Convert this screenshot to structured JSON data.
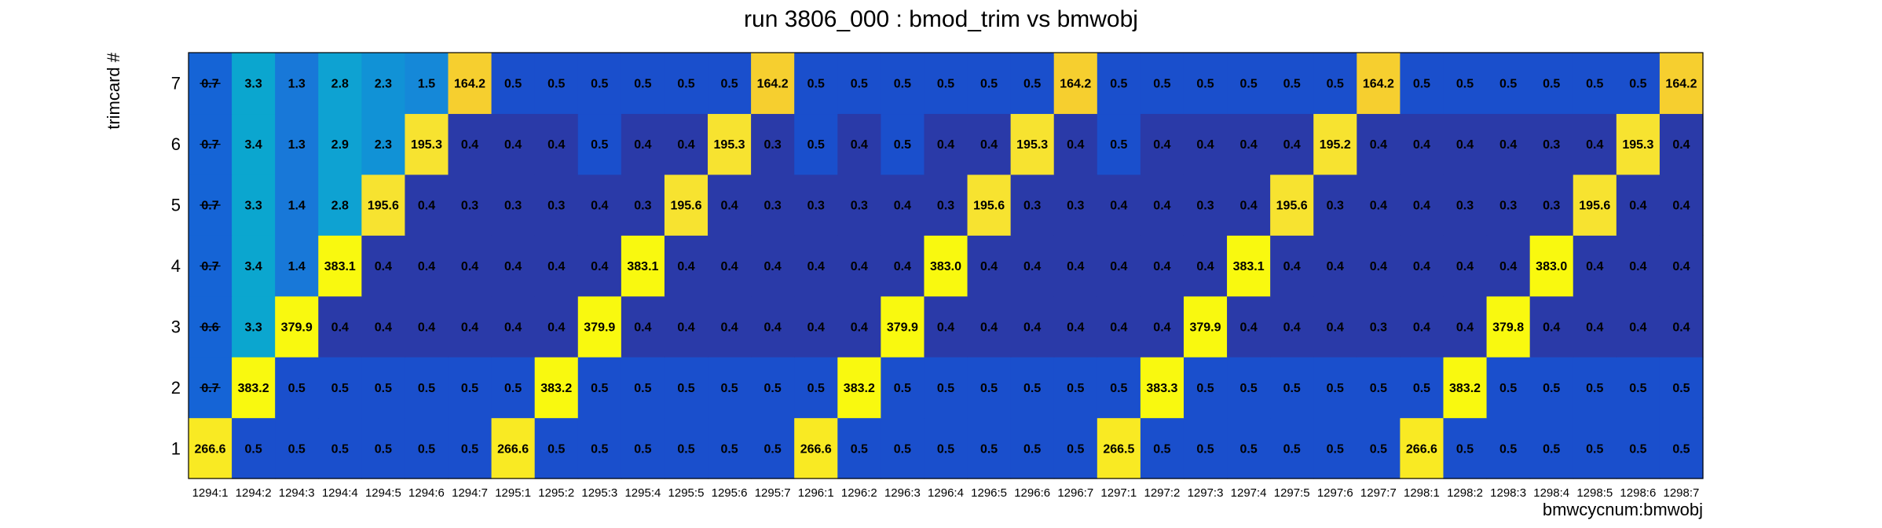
{
  "chart_data": {
    "type": "heatmap",
    "title": "run 3806_000 : bmod_trim vs bmwobj",
    "xlabel": "bmwcycnum:bmwobj",
    "ylabel": "trimcard #",
    "x_categories": [
      "1294:1",
      "1294:2",
      "1294:3",
      "1294:4",
      "1294:5",
      "1294:6",
      "1294:7",
      "1295:1",
      "1295:2",
      "1295:3",
      "1295:4",
      "1295:5",
      "1295:6",
      "1295:7",
      "1296:1",
      "1296:2",
      "1296:3",
      "1296:4",
      "1296:5",
      "1296:6",
      "1296:7",
      "1297:1",
      "1297:2",
      "1297:3",
      "1297:4",
      "1297:5",
      "1297:6",
      "1297:7",
      "1298:1",
      "1298:2",
      "1298:3",
      "1298:4",
      "1298:5",
      "1298:6",
      "1298:7"
    ],
    "y_categories": [
      "1",
      "2",
      "3",
      "4",
      "5",
      "6",
      "7"
    ],
    "values": [
      [
        "266.6",
        "0.5",
        "0.5",
        "0.5",
        "0.5",
        "0.5",
        "0.5",
        "266.6",
        "0.5",
        "0.5",
        "0.5",
        "0.5",
        "0.5",
        "0.5",
        "266.6",
        "0.5",
        "0.5",
        "0.5",
        "0.5",
        "0.5",
        "0.5",
        "266.5",
        "0.5",
        "0.5",
        "0.5",
        "0.5",
        "0.5",
        "0.5",
        "266.6",
        "0.5",
        "0.5",
        "0.5",
        "0.5",
        "0.5",
        "0.5"
      ],
      [
        "0.7",
        "383.2",
        "0.5",
        "0.5",
        "0.5",
        "0.5",
        "0.5",
        "0.5",
        "383.2",
        "0.5",
        "0.5",
        "0.5",
        "0.5",
        "0.5",
        "0.5",
        "383.2",
        "0.5",
        "0.5",
        "0.5",
        "0.5",
        "0.5",
        "0.5",
        "383.3",
        "0.5",
        "0.5",
        "0.5",
        "0.5",
        "0.5",
        "0.5",
        "383.2",
        "0.5",
        "0.5",
        "0.5",
        "0.5",
        "0.5"
      ],
      [
        "0.6",
        "3.3",
        "379.9",
        "0.4",
        "0.4",
        "0.4",
        "0.4",
        "0.4",
        "0.4",
        "379.9",
        "0.4",
        "0.4",
        "0.4",
        "0.4",
        "0.4",
        "0.4",
        "379.9",
        "0.4",
        "0.4",
        "0.4",
        "0.4",
        "0.4",
        "0.4",
        "379.9",
        "0.4",
        "0.4",
        "0.4",
        "0.3",
        "0.4",
        "0.4",
        "379.8",
        "0.4",
        "0.4",
        "0.4",
        "0.4"
      ],
      [
        "0.7",
        "3.4",
        "1.4",
        "383.1",
        "0.4",
        "0.4",
        "0.4",
        "0.4",
        "0.4",
        "0.4",
        "383.1",
        "0.4",
        "0.4",
        "0.4",
        "0.4",
        "0.4",
        "0.4",
        "383.0",
        "0.4",
        "0.4",
        "0.4",
        "0.4",
        "0.4",
        "0.4",
        "383.1",
        "0.4",
        "0.4",
        "0.4",
        "0.4",
        "0.4",
        "0.4",
        "383.0",
        "0.4",
        "0.4",
        "0.4"
      ],
      [
        "0.7",
        "3.3",
        "1.4",
        "2.8",
        "195.6",
        "0.4",
        "0.3",
        "0.3",
        "0.3",
        "0.4",
        "0.3",
        "195.6",
        "0.4",
        "0.3",
        "0.3",
        "0.3",
        "0.4",
        "0.3",
        "195.6",
        "0.3",
        "0.3",
        "0.4",
        "0.4",
        "0.3",
        "0.4",
        "195.6",
        "0.3",
        "0.4",
        "0.4",
        "0.3",
        "0.3",
        "0.3",
        "195.6",
        "0.4",
        "0.4"
      ],
      [
        "0.7",
        "3.4",
        "1.3",
        "2.9",
        "2.3",
        "195.3",
        "0.4",
        "0.4",
        "0.4",
        "0.5",
        "0.4",
        "0.4",
        "195.3",
        "0.3",
        "0.5",
        "0.4",
        "0.5",
        "0.4",
        "0.4",
        "195.3",
        "0.4",
        "0.5",
        "0.4",
        "0.4",
        "0.4",
        "0.4",
        "195.2",
        "0.4",
        "0.4",
        "0.4",
        "0.4",
        "0.3",
        "0.4",
        "195.3",
        "0.4"
      ],
      [
        "0.7",
        "3.3",
        "1.3",
        "2.8",
        "2.3",
        "1.5",
        "164.2",
        "0.5",
        "0.5",
        "0.5",
        "0.5",
        "0.5",
        "0.5",
        "164.2",
        "0.5",
        "0.5",
        "0.5",
        "0.5",
        "0.5",
        "0.5",
        "164.2",
        "0.5",
        "0.5",
        "0.5",
        "0.5",
        "0.5",
        "0.5",
        "164.2",
        "0.5",
        "0.5",
        "0.5",
        "0.5",
        "0.5",
        "0.5",
        "164.2"
      ]
    ],
    "grid": false,
    "legend": "none",
    "colors": {
      "band_0_3": "#2a3aa8",
      "band_0_45": "#1a4fcc",
      "band_0_7": "#1564d6",
      "band_1_35": "#1878d8",
      "band_1_5": "#1588d8",
      "band_2_3": "#1192d6",
      "band_2_8": "#0ea2d2",
      "band_3_3": "#0ba6cf",
      "band_164": "#f6cf2f",
      "band_196": "#f7e330",
      "band_266": "#f9ea23",
      "band_380": "#f9f90f"
    }
  }
}
